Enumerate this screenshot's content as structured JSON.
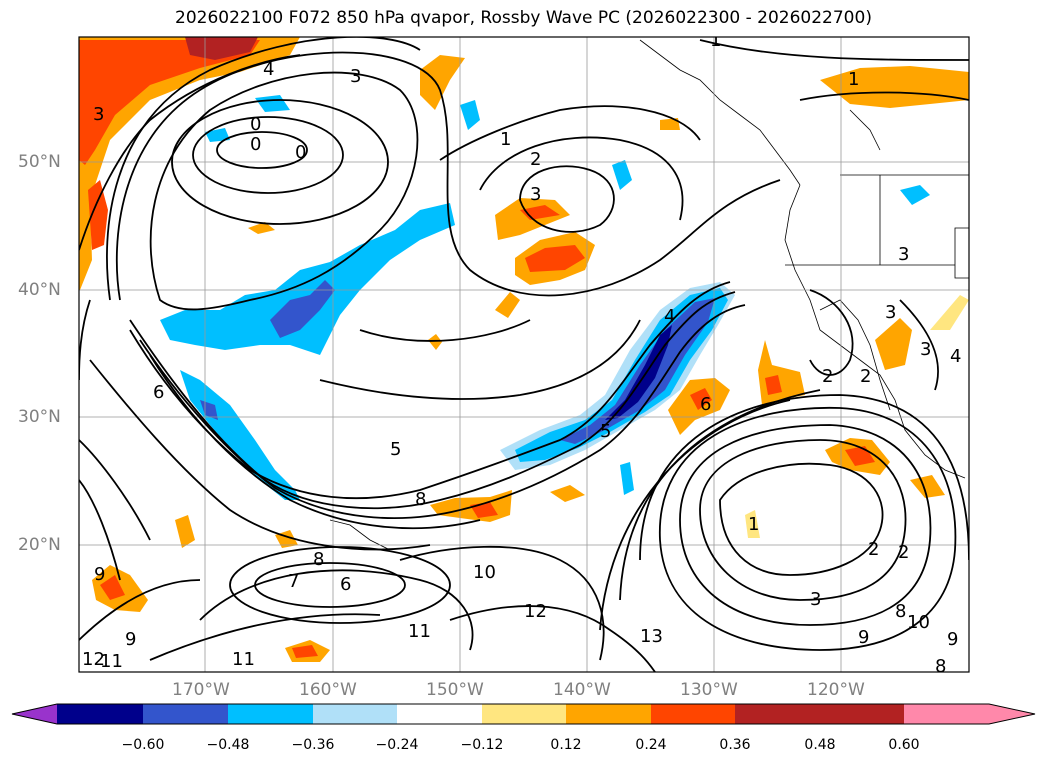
{
  "title": "2026022100 F072 850 hPa qvapor, Rossby Wave PC (2026022300 - 2026022700)",
  "axes": {
    "lat_labels": [
      "50°N",
      "40°N",
      "30°N",
      "20°N"
    ],
    "lon_labels": [
      "170°W",
      "160°W",
      "150°W",
      "140°W",
      "130°W",
      "120°W"
    ]
  },
  "colorbar": {
    "ticks": [
      "−0.60",
      "−0.48",
      "−0.36",
      "−0.24",
      "−0.12",
      "0.12",
      "0.24",
      "0.36",
      "0.48",
      "0.60"
    ],
    "colors": [
      "#9933cc",
      "#00008b",
      "#3355cc",
      "#00bfff",
      "#b0e0f8",
      "#ffffff",
      "#ffe680",
      "#ffa500",
      "#ff4500",
      "#b22222",
      "#ff88aa"
    ]
  },
  "contour_labels": [
    "4",
    "3",
    "3",
    "0",
    "0",
    "0",
    "1",
    "1",
    "1",
    "2",
    "3",
    "3",
    "3",
    "3",
    "4",
    "2",
    "2",
    "4",
    "5",
    "5",
    "6",
    "6",
    "8",
    "8",
    "7",
    "6",
    "9",
    "9",
    "10",
    "11",
    "11",
    "12",
    "13",
    "1",
    "2",
    "2",
    "3",
    "8",
    "10",
    "8",
    "9",
    "9",
    "12",
    "11"
  ]
}
